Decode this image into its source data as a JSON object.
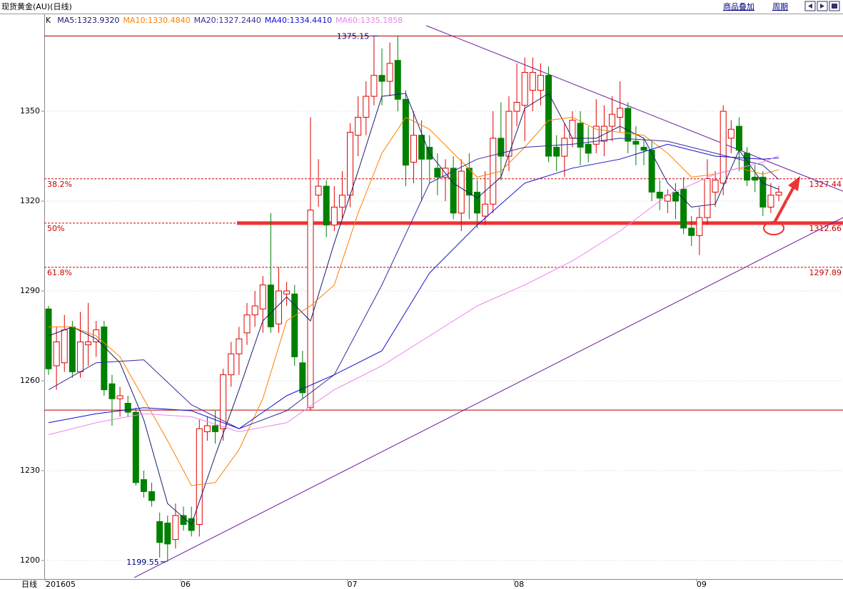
{
  "header": {
    "title": "现货黄金(AU)(日线)",
    "buttons": [
      "商品叠加",
      "周期"
    ]
  },
  "chart_data": {
    "type": "candlestick",
    "indicator": "K",
    "x_label": "日线",
    "categories": [
      "201605",
      null,
      null,
      null,
      null,
      null,
      null,
      null,
      null,
      null,
      null,
      null,
      null,
      null,
      null,
      null,
      null,
      "06",
      null,
      null,
      null,
      null,
      null,
      null,
      null,
      null,
      null,
      null,
      null,
      null,
      null,
      null,
      null,
      null,
      null,
      null,
      null,
      null,
      "07",
      null,
      null,
      null,
      null,
      null,
      null,
      null,
      null,
      null,
      null,
      null,
      null,
      null,
      null,
      null,
      null,
      null,
      null,
      null,
      null,
      "08",
      null,
      null,
      null,
      null,
      null,
      null,
      null,
      null,
      null,
      null,
      null,
      null,
      null,
      null,
      null,
      null,
      null,
      null,
      null,
      null,
      null,
      null,
      "09",
      null,
      null,
      null,
      null,
      null,
      null,
      null,
      null,
      null,
      null
    ],
    "open": [
      1284,
      1265,
      1266,
      1278,
      1263,
      1272,
      1273,
      1278,
      1259,
      1254,
      1252.5,
      1249.5,
      1227,
      1223,
      1213,
      1212.5,
      1207,
      1215,
      1214,
      1212,
      1243,
      1245,
      1244,
      1262,
      1269,
      1276,
      1282,
      1284,
      1292,
      1279,
      1289,
      1289,
      1266,
      1251,
      1322,
      1325,
      1312,
      1318,
      1322,
      1342,
      1348,
      1355,
      1362,
      1360,
      1367,
      1354,
      1333,
      1342,
      1338,
      1331,
      1328,
      1331,
      1316,
      1331,
      1323,
      1315,
      1319,
      1341,
      1335,
      1350,
      1352,
      1357,
      1357,
      1362,
      1338,
      1335,
      1341,
      1346,
      1339,
      1339,
      1340,
      1345,
      1348,
      1351,
      1340,
      1338,
      1337,
      1323,
      1320,
      1323,
      1324,
      1311,
      1308.5,
      1314.5,
      1323,
      1326,
      1341,
      1345,
      1336,
      1328,
      1328,
      1318,
      1322
    ],
    "high": [
      1285,
      1278,
      1282,
      1280,
      1283,
      1286,
      1280,
      1280,
      1262,
      1258,
      1255,
      1251,
      1230,
      1226,
      1216,
      1215,
      1219,
      1218,
      1218,
      1247,
      1248,
      1250,
      1264,
      1273,
      1278,
      1286,
      1290,
      1295,
      1316,
      1298,
      1293,
      1292,
      1270,
      1348,
      1334,
      1327,
      1325,
      1330,
      1346,
      1355,
      1360,
      1375,
      1371,
      1373,
      1375.15,
      1357,
      1350,
      1347,
      1342,
      1336,
      1334,
      1335,
      1334,
      1336,
      1327,
      1330,
      1350,
      1353,
      1355,
      1366,
      1368,
      1368,
      1366,
      1365,
      1342,
      1346,
      1350,
      1350,
      1345,
      1354,
      1352,
      1355,
      1360,
      1353,
      1345,
      1341,
      1340,
      1327,
      1324,
      1326,
      1328,
      1315,
      1318,
      1334,
      1330,
      1352,
      1347,
      1348,
      1338,
      1332,
      1330,
      1326,
      1325
    ],
    "low": [
      1262,
      1257,
      1263,
      1261,
      1261,
      1265,
      1268,
      1255,
      1245,
      1248,
      1248,
      1225,
      1221,
      1218,
      1201,
      1199.55,
      1204,
      1210,
      1208,
      1208,
      1240,
      1239,
      1240,
      1258,
      1262,
      1272,
      1278,
      1276,
      1276,
      1276,
      1285,
      1265,
      1254,
      1250,
      1318,
      1308,
      1310,
      1314,
      1318,
      1335,
      1342,
      1352,
      1352,
      1355,
      1350,
      1325,
      1326,
      1320,
      1326,
      1322,
      1320,
      1314,
      1310,
      1314,
      1311,
      1312,
      1316,
      1327,
      1330,
      1345,
      1340,
      1350,
      1352,
      1333,
      1330,
      1328,
      1338,
      1332,
      1333,
      1336,
      1335,
      1340,
      1343,
      1336,
      1332,
      1332,
      1320,
      1317,
      1316,
      1314,
      1309,
      1305,
      1302,
      1312,
      1318,
      1322,
      1336,
      1330,
      1325,
      1323,
      1315,
      1316,
      1320
    ],
    "close": [
      1264,
      1273,
      1277,
      1263,
      1273,
      1273,
      1277,
      1257,
      1254,
      1255,
      1249.5,
      1226,
      1223,
      1220,
      1206,
      1205.5,
      1215,
      1212,
      1210,
      1244,
      1245,
      1243,
      1262,
      1269,
      1274,
      1282,
      1285,
      1292,
      1278,
      1290,
      1290,
      1268,
      1256,
      1317,
      1325,
      1312,
      1318,
      1322,
      1343,
      1348,
      1355,
      1362,
      1360,
      1366,
      1354,
      1332,
      1342,
      1334,
      1334,
      1328,
      1331,
      1316,
      1330,
      1322,
      1316,
      1319,
      1341,
      1335,
      1350,
      1353,
      1363,
      1363,
      1362,
      1335,
      1335,
      1341,
      1347,
      1338,
      1336,
      1345,
      1345,
      1349,
      1351,
      1340,
      1339,
      1337,
      1323,
      1321,
      1322,
      1320,
      1311,
      1308.5,
      1314.5,
      1327.5,
      1327,
      1350,
      1344,
      1337,
      1327,
      1327,
      1318,
      1322,
      1323
    ],
    "up_color": "#e00000",
    "down_color": "#008000",
    "ylim": [
      1193.8,
      1382.4
    ],
    "yticks": [
      1200,
      1230,
      1260,
      1290,
      1320,
      1350
    ],
    "grid": true,
    "series": [
      {
        "name": "MA5:1323.9320",
        "color": "#1c1c70",
        "x": [
          0,
          3,
          6,
          9,
          12,
          15,
          18,
          21,
          24,
          27,
          30,
          33,
          36,
          39,
          42,
          45,
          48,
          51,
          54,
          57,
          60,
          63,
          66,
          69,
          72,
          75,
          78,
          81,
          84,
          87,
          90,
          92
        ],
        "values": [
          1275,
          1278,
          1274,
          1266,
          1247,
          1219,
          1212,
          1235,
          1257,
          1280,
          1288,
          1280,
          1306,
          1330,
          1355,
          1356,
          1336,
          1326,
          1321,
          1328,
          1351,
          1356,
          1341,
          1341,
          1345,
          1341,
          1326,
          1318,
          1319,
          1337,
          1326,
          1323.932
        ]
      },
      {
        "name": "MA10:1330.4840",
        "color": "#ff8000",
        "x": [
          0,
          3,
          6,
          9,
          12,
          15,
          18,
          21,
          24,
          27,
          30,
          33,
          36,
          39,
          42,
          45,
          48,
          51,
          54,
          57,
          60,
          63,
          66,
          69,
          72,
          75,
          78,
          81,
          84,
          87,
          90,
          92
        ],
        "values": [
          1278,
          1278,
          1275,
          1268,
          1254,
          1240,
          1225,
          1226,
          1237,
          1254,
          1280,
          1285,
          1292,
          1316,
          1336,
          1348,
          1344,
          1336,
          1328,
          1330,
          1338,
          1347,
          1348,
          1344,
          1343,
          1342,
          1336,
          1328,
          1329,
          1331,
          1329,
          1330.484
        ]
      },
      {
        "name": "MA20:1327.2440",
        "color": "#3a2a9a",
        "x": [
          0,
          6,
          12,
          18,
          24,
          30,
          36,
          42,
          48,
          54,
          60,
          66,
          72,
          78,
          84,
          90,
          92
        ],
        "values": [
          1257,
          1266,
          1267,
          1252,
          1244,
          1250,
          1262,
          1292,
          1326,
          1334,
          1338,
          1339,
          1341,
          1340,
          1336,
          1332,
          1327.244
        ]
      },
      {
        "name": "MA40:1334.4410",
        "color": "#1010d0",
        "x": [
          0,
          6,
          12,
          18,
          24,
          30,
          36,
          42,
          48,
          54,
          60,
          66,
          72,
          78,
          84,
          90,
          92
        ],
        "values": [
          1246,
          1249,
          1251,
          1250,
          1244,
          1255,
          1262,
          1270,
          1296,
          1312,
          1326,
          1331,
          1334,
          1339,
          1335,
          1334,
          1334.441
        ]
      },
      {
        "name": "MA60:1335.1858",
        "color": "#ee82ee",
        "x": [
          0,
          6,
          12,
          18,
          24,
          30,
          36,
          42,
          48,
          54,
          60,
          66,
          72,
          78,
          84,
          90,
          92
        ],
        "values": [
          1242,
          1246,
          1249,
          1248,
          1243,
          1246,
          1257,
          1265,
          1275,
          1285,
          1292,
          1300,
          1310,
          1322,
          1329,
          1333,
          1335.1858
        ]
      }
    ],
    "hlines": [
      1375.15,
      1250.2
    ],
    "hline_color": "#b00000",
    "fib_levels": [
      {
        "name": "38.2%",
        "value": 1327.44
      },
      {
        "name": "50%",
        "value": 1312.66
      },
      {
        "name": "61.8%",
        "value": 1297.89
      }
    ],
    "fib_color": "#cc0000",
    "support_color": "#ee3333",
    "trendlines": [
      {
        "x": [
          47.6,
          100.1
        ],
        "values": [
          1378.6,
          1323.3
        ]
      },
      {
        "x": [
          10.8,
          100.1
        ],
        "values": [
          1194.3,
          1314.5
        ]
      }
    ],
    "trend_color": "#6a1b9a",
    "high_mark": 1375.15,
    "low_mark": 1199.55
  }
}
